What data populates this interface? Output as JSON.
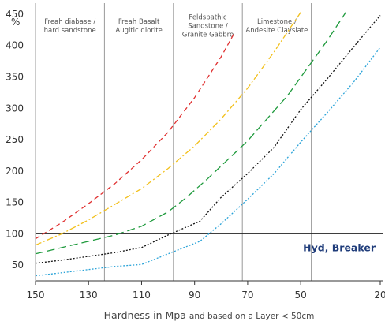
{
  "chart_data": {
    "type": "line",
    "title": "",
    "ylabel": "%",
    "xlabel": "Hardness in Mpa",
    "xlabel_note": "and based on a Layer < 50cm",
    "xlim": [
      150,
      20
    ],
    "ylim": [
      25,
      460
    ],
    "x_ticks": [
      150,
      130,
      110,
      90,
      70,
      50,
      20
    ],
    "x_tick_labels": [
      "150",
      "130",
      "110",
      "90",
      "70",
      "50",
      "20"
    ],
    "y_ticks": [
      50,
      100,
      150,
      200,
      250,
      300,
      350,
      400,
      450
    ],
    "y_tick_labels": [
      "50",
      "100",
      "150",
      "200",
      "250",
      "300",
      "350",
      "400",
      "450"
    ],
    "grid": false,
    "zones": [
      {
        "lines": [
          "Freah diabase /",
          "hard sandstone"
        ],
        "x_from": 150,
        "x_to": 124
      },
      {
        "lines": [
          "Freah Basalt",
          "Augitic diorite"
        ],
        "x_from": 124,
        "x_to": 98
      },
      {
        "lines": [
          "Feldspathic",
          "Sandstone /",
          "Granite Gabbro"
        ],
        "x_from": 98,
        "x_to": 72
      },
      {
        "lines": [
          "Limestone /",
          "Andesite Clayslate"
        ],
        "x_from": 72,
        "x_to": 46
      }
    ],
    "zone_dividers": [
      124,
      98,
      72,
      46
    ],
    "reference_line": {
      "y": 100,
      "label": "Hyd, Breaker"
    },
    "series": [
      {
        "color": "#e03030",
        "dash": "6,4",
        "x": [
          150,
          140,
          130,
          120,
          110,
          100,
          90,
          80,
          75
        ],
        "y": [
          92,
          118,
          148,
          180,
          218,
          262,
          317,
          382,
          420
        ]
      },
      {
        "color": "#f2c01c",
        "dash": "8,3,2,3",
        "x": [
          150,
          140,
          130,
          120,
          110,
          100,
          90,
          80,
          70,
          60,
          50
        ],
        "y": [
          82,
          100,
          122,
          147,
          172,
          204,
          240,
          283,
          332,
          390,
          453
        ]
      },
      {
        "color": "#1e9a3c",
        "dash": "10,5",
        "x": [
          150,
          140,
          130,
          120,
          110,
          100,
          93,
          85,
          70,
          55,
          40,
          33
        ],
        "y": [
          68,
          78,
          88,
          98,
          112,
          135,
          158,
          188,
          248,
          320,
          408,
          453
        ]
      },
      {
        "color": "#111111",
        "dash": "2,2",
        "x": [
          150,
          140,
          130,
          120,
          110,
          100,
          88,
          80,
          70,
          60,
          50,
          40,
          30,
          20
        ],
        "y": [
          53,
          58,
          64,
          70,
          78,
          98,
          120,
          158,
          196,
          238,
          298,
          347,
          398,
          448
        ]
      },
      {
        "color": "#2aa3d8",
        "dash": "2,2",
        "x": [
          150,
          140,
          130,
          120,
          110,
          100,
          88,
          80,
          70,
          60,
          50,
          40,
          30,
          20
        ],
        "y": [
          33,
          38,
          43,
          48,
          51,
          68,
          88,
          116,
          155,
          196,
          246,
          293,
          342,
          397
        ]
      }
    ]
  }
}
